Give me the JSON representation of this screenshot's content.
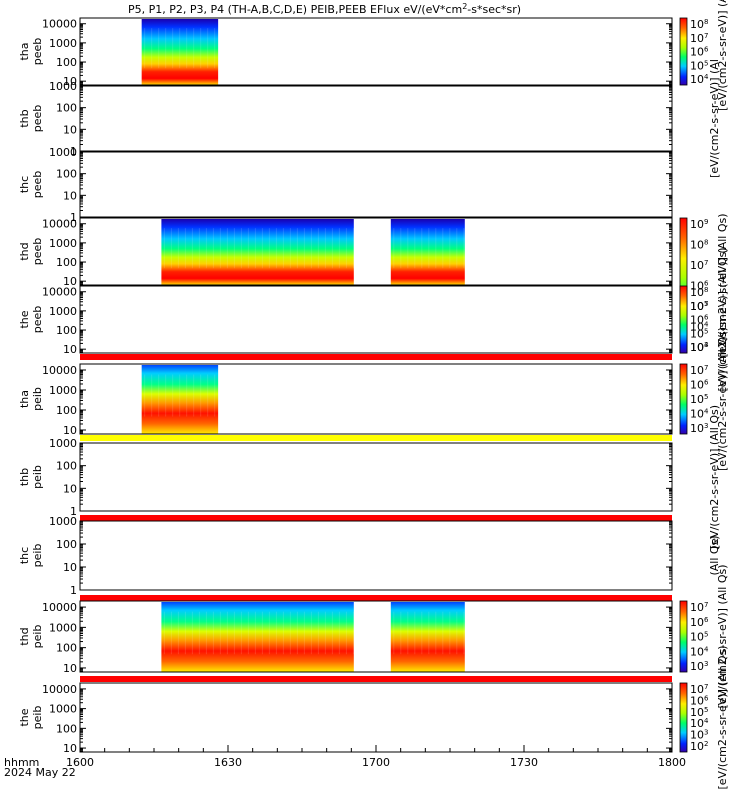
{
  "title": "P5, P1, P2, P3, P4 (TH-A,B,C,D,E) PEIB,PEEB EFlux eV/(eV*cm",
  "title_sup": "2",
  "title_tail": "-s*sec*sr)",
  "colors": {
    "red_bar": "#ff0000",
    "yellow_bar": "#ffff00",
    "gap": "#ffffff"
  },
  "chart_data": {
    "type": "heatmap",
    "x_axis": {
      "label_line1": "hhmm",
      "label_line2": "2024 May 22",
      "ticks": [
        "1600",
        "1630",
        "1700",
        "1730",
        "1800"
      ],
      "range_minutes": [
        0,
        120
      ]
    },
    "panels": [
      {
        "id": "tha-peeb",
        "ylabel": [
          "tha",
          "peeb"
        ],
        "yticks": [
          "10000",
          "1000",
          "100",
          "10"
        ],
        "ylog": [
          0.8,
          4.3
        ],
        "segments": [
          [
            12.5,
            28
          ]
        ],
        "cbar": {
          "ticks": [
            "10^8",
            "10^7",
            "10^6",
            "10^5",
            "10^4"
          ],
          "label": "[eV/(cm2-s-sr-eV)] (Al"
        }
      },
      {
        "id": "thb-peeb",
        "ylabel": [
          "thb",
          "peeb"
        ],
        "yticks": [
          "1000",
          "100",
          "10",
          "1"
        ],
        "ylog": [
          0,
          3
        ],
        "segments": [],
        "cbar": null,
        "cbar_label": "[eV/(cm2-s-sr-eV)] (Al"
      },
      {
        "id": "thc-peeb",
        "ylabel": [
          "thc",
          "peeb"
        ],
        "yticks": [
          "1000",
          "100",
          "10",
          "1"
        ],
        "ylog": [
          0,
          3
        ],
        "segments": [],
        "cbar": null
      },
      {
        "id": "thd-peeb",
        "ylabel": [
          "thd",
          "peeb"
        ],
        "yticks": [
          "10000",
          "1000",
          "100",
          "10"
        ],
        "ylog": [
          0.8,
          4.3
        ],
        "segments": [
          [
            16.5,
            55.5
          ],
          [
            63,
            78
          ]
        ],
        "cbar": {
          "ticks": [
            "10^9",
            "10^8",
            "10^7",
            "10^6",
            "10^5",
            "10^4",
            "10^3"
          ],
          "label": "[eV/(cm2-s-sr-eV)] (All Qs)"
        }
      },
      {
        "id": "the-peeb",
        "ylabel": [
          "the",
          "peeb"
        ],
        "yticks": [
          "10000",
          "1000",
          "100",
          "10"
        ],
        "ylog": [
          0.8,
          4.3
        ],
        "segments": [],
        "cbar": {
          "ticks": [
            "10^8",
            "10^7",
            "10^6",
            "10^5",
            "10^4"
          ],
          "label": "[eV/(cm2-s-sr-eV)] (All Qs)"
        }
      },
      {
        "id": "tha-peib",
        "ylabel": [
          "tha",
          "peib"
        ],
        "yticks": [
          "10000",
          "1000",
          "100",
          "10"
        ],
        "ylog": [
          0.8,
          4.3
        ],
        "segments": [
          [
            12.5,
            28
          ]
        ],
        "cbar": {
          "ticks": [
            "10^7",
            "10^6",
            "10^5",
            "10^4",
            "10^3"
          ],
          "label": "[eV/(cm2-s-sr-eV)] (All Qs)"
        }
      },
      {
        "id": "thb-peib",
        "ylabel": [
          "thb",
          "peib"
        ],
        "yticks": [
          "1000",
          "100",
          "10",
          "1"
        ],
        "ylog": [
          0,
          3
        ],
        "segments": [],
        "cbar": null,
        "cbar_label": "[eV/(cm2-s-sr-eV)] (All Qs)"
      },
      {
        "id": "thc-peib",
        "ylabel": [
          "thc",
          "peib"
        ],
        "yticks": [
          "1000",
          "100",
          "10",
          "1"
        ],
        "ylog": [
          0,
          3
        ],
        "segments": [],
        "cbar": null,
        "cbar_label": "(All Qs)"
      },
      {
        "id": "thd-peib",
        "ylabel": [
          "thd",
          "peib"
        ],
        "yticks": [
          "10000",
          "1000",
          "100",
          "10"
        ],
        "ylog": [
          0.8,
          4.3
        ],
        "segments": [
          [
            16.5,
            55.5
          ],
          [
            63,
            78
          ]
        ],
        "cbar": {
          "ticks": [
            "10^7",
            "10^6",
            "10^5",
            "10^4",
            "10^3"
          ],
          "label": "[eV/(cm2-s-sr-eV)] (All Qs)"
        }
      },
      {
        "id": "the-peib",
        "ylabel": [
          "the",
          "peib"
        ],
        "yticks": [
          "10000",
          "1000",
          "100",
          "10"
        ],
        "ylog": [
          0.8,
          4.3
        ],
        "segments": [],
        "cbar": {
          "ticks": [
            "10^7",
            "10^6",
            "10^5",
            "10^4",
            "10^3",
            "10^2"
          ],
          "label": "[eV/(cm2-s-sr-eV)] (All Qs)"
        }
      }
    ],
    "flag_bars": [
      {
        "after_panel": "the-peeb",
        "color": "red"
      },
      {
        "after_panel": "tha-peib",
        "color": "yellow"
      },
      {
        "after_panel": "thb-peib",
        "color": "red"
      },
      {
        "after_panel": "thc-peib",
        "color": "red"
      },
      {
        "after_panel": "thd-peib",
        "color": "red"
      }
    ]
  }
}
